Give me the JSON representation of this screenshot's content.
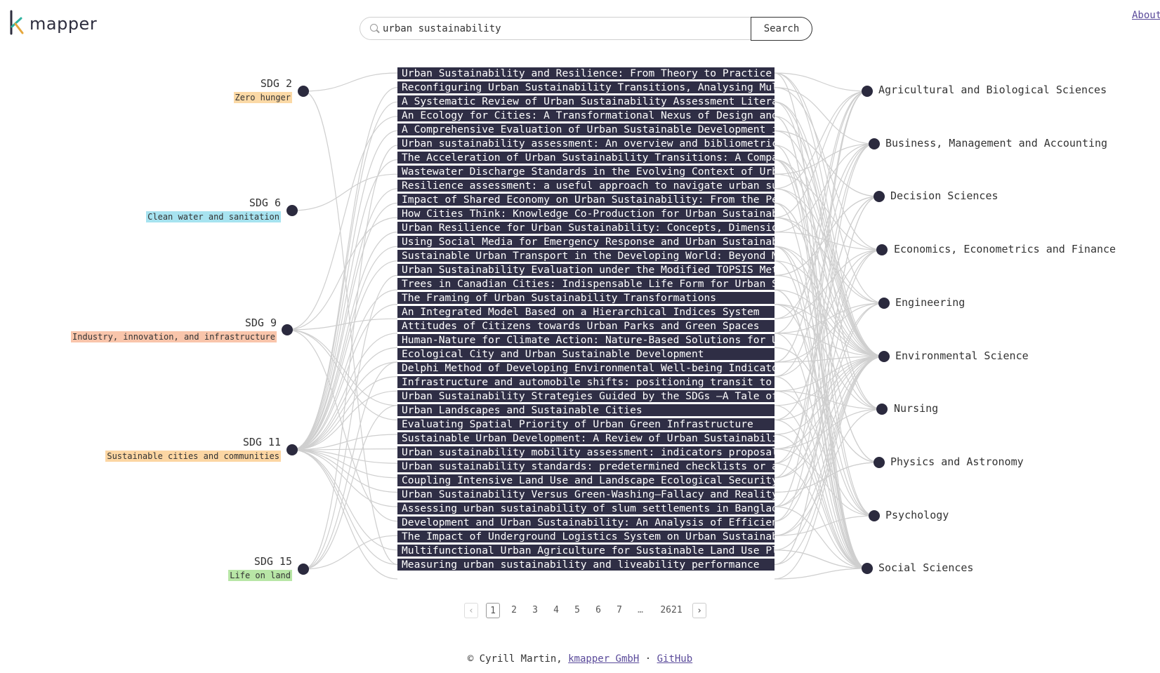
{
  "header": {
    "logo_text": "mapper",
    "search_value": "urban sustainability",
    "search_button": "Search",
    "about_link": "About"
  },
  "sdgs": [
    {
      "code": "SDG 2",
      "name": "Zero hunger",
      "color": "#fbd9a6"
    },
    {
      "code": "SDG 6",
      "name": "Clean water and sanitation",
      "color": "#a7e3f0"
    },
    {
      "code": "SDG 9",
      "name": "Industry, innovation, and infrastructure",
      "color": "#f9c5ab"
    },
    {
      "code": "SDG 11",
      "name": "Sustainable cities and communities",
      "color": "#fcd6a3"
    },
    {
      "code": "SDG 15",
      "name": "Life on land",
      "color": "#b8e6a6"
    }
  ],
  "papers": [
    "Urban Sustainability and Resilience: From Theory to Practice",
    "Reconfiguring Urban Sustainability Transitions, Analysing Multiplicity",
    "A Systematic Review of Urban Sustainability Assessment Literature",
    "An Ecology for Cities: A Transformational Nexus of Design and Planning",
    "A Comprehensive Evaluation of Urban Sustainable Development in China",
    "Urban sustainability assessment: An overview and bibliometric analysis",
    "The Acceleration of Urban Sustainability Transitions: A Comparison",
    "Wastewater Discharge Standards in the Evolving Context of Urban Sustainability",
    "Resilience assessment: a useful approach to navigate urban sustainability",
    "Impact of Shared Economy on Urban Sustainability: From the Perspective",
    "How Cities Think: Knowledge Co-Production for Urban Sustainability",
    "Urban Resilience for Urban Sustainability: Concepts, Dimensions",
    "Using Social Media for Emergency Response and Urban Sustainability",
    "Sustainable Urban Transport in the Developing World: Beyond Megacities",
    "Urban Sustainability Evaluation under the Modified TOPSIS Method",
    "Trees in Canadian Cities: Indispensable Life Form for Urban Sustainability",
    "The Framing of Urban Sustainability Transformations",
    "An Integrated Model Based on a Hierarchical Indices System",
    "Attitudes of Citizens towards Urban Parks and Green Spaces",
    "Human-Nature for Climate Action: Nature-Based Solutions for Urban",
    "Ecological City and Urban Sustainable Development",
    "Delphi Method of Developing Environmental Well-being Indicators",
    "Infrastructure and automobile shifts: positioning transit to reduce",
    "Urban Sustainability Strategies Guided by the SDGs —A Tale of Four Cities",
    "Urban Landscapes and Sustainable Cities",
    "Evaluating Spatial Priority of Urban Green Infrastructure",
    "Sustainable Urban Development: A Review of Urban Sustainability",
    "Urban sustainability mobility assessment: indicators proposal",
    "Urban sustainability standards: predetermined checklists or adaptable",
    "Coupling Intensive Land Use and Landscape Ecological Security",
    "Urban Sustainability Versus Green-Washing—Fallacy and Reality",
    "Assessing urban sustainability of slum settlements in Bangladesh",
    "Development and Urban Sustainability: An Analysis of Efficiency",
    "The Impact of Underground Logistics System on Urban Sustainability",
    "Multifunctional Urban Agriculture for Sustainable Land Use Planning",
    "Measuring urban sustainability and liveability performance"
  ],
  "subjects": [
    "Agricultural and Biological Sciences",
    "Business, Management and Accounting",
    "Decision Sciences",
    "Economics, Econometrics and Finance",
    "Engineering",
    "Environmental Science",
    "Nursing",
    "Physics and Astronomy",
    "Psychology",
    "Social Sciences"
  ],
  "pagination": {
    "prev": "‹",
    "pages": [
      "1",
      "2",
      "3",
      "4",
      "5",
      "6",
      "7",
      "…",
      "2621"
    ],
    "next": "›",
    "current": "1"
  },
  "footer": {
    "copyright": "© Cyrill Martin,",
    "company": "kmapper GmbH",
    "sep": "·",
    "github": "GitHub"
  }
}
